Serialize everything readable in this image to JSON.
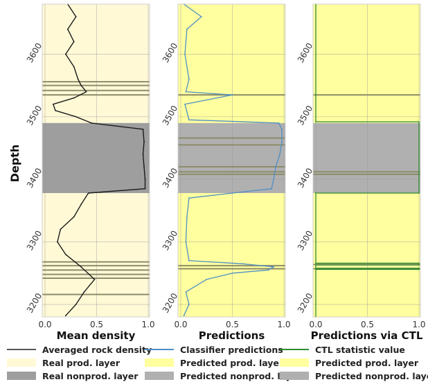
{
  "chart_data": [
    {
      "type": "line",
      "xlabel": "Mean density",
      "ylabel": "Depth",
      "xlim": [
        0,
        1
      ],
      "ylim": [
        3180,
        3680
      ],
      "xticks": [
        "0.0",
        "0.5",
        "1.0"
      ],
      "yticks": [
        "3200",
        "3300",
        "3400",
        "3500",
        "3600"
      ],
      "series": [
        {
          "name": "Averaged rock density",
          "color": "#1a1a1a",
          "depth": [
            3182,
            3200,
            3220,
            3240,
            3260,
            3280,
            3300,
            3320,
            3340,
            3360,
            3378,
            3385,
            3400,
            3420,
            3440,
            3460,
            3480,
            3490,
            3500,
            3510,
            3520,
            3530,
            3540,
            3550,
            3560,
            3580,
            3600,
            3620,
            3640,
            3660,
            3680
          ],
          "values": [
            0.2,
            0.3,
            0.38,
            0.48,
            0.35,
            0.2,
            0.12,
            0.15,
            0.28,
            0.35,
            0.42,
            0.97,
            0.97,
            0.96,
            0.95,
            0.96,
            0.95,
            0.45,
            0.3,
            0.1,
            0.08,
            0.28,
            0.4,
            0.35,
            0.32,
            0.28,
            0.2,
            0.28,
            0.22,
            0.3,
            0.22
          ]
        }
      ],
      "bands": [
        {
          "name": "Real prod. layer",
          "color": "#fff9d6",
          "from": 3180,
          "to": 3680
        },
        {
          "name": "Real nonprod. layer",
          "color": "#9e9e9e",
          "from": 3378,
          "to": 3490
        }
      ],
      "lines_at_depth": [
        3216,
        3242,
        3248,
        3255,
        3262,
        3268,
        3535,
        3542,
        3550,
        3556
      ]
    },
    {
      "type": "line",
      "xlabel": "Predictions",
      "xlim": [
        0,
        1
      ],
      "ylim": [
        3180,
        3680
      ],
      "xticks": [
        "0.0",
        "0.5",
        "1.0"
      ],
      "yticks": [
        "3200",
        "3300",
        "3400",
        "3500",
        "3600"
      ],
      "series": [
        {
          "name": "Classifier predictions",
          "color": "#4f8fc6",
          "depth": [
            3182,
            3200,
            3220,
            3240,
            3250,
            3255,
            3260,
            3265,
            3270,
            3300,
            3340,
            3370,
            3378,
            3385,
            3400,
            3420,
            3440,
            3460,
            3480,
            3490,
            3495,
            3520,
            3535,
            3540,
            3560,
            3600,
            3640,
            3660,
            3680
          ],
          "values": [
            0.03,
            0.08,
            0.05,
            0.25,
            0.5,
            0.85,
            0.9,
            0.6,
            0.08,
            0.05,
            0.06,
            0.08,
            0.5,
            0.88,
            0.9,
            0.92,
            0.96,
            0.98,
            0.98,
            0.95,
            0.08,
            0.04,
            0.5,
            0.05,
            0.08,
            0.04,
            0.06,
            0.2,
            0.03
          ]
        }
      ],
      "bands": [
        {
          "name": "Predicted prod. layer",
          "color": "#ffff9f",
          "from": 3180,
          "to": 3680
        },
        {
          "name": "Predicted nonprod. layer",
          "color": "#b0b0b0",
          "from": 3378,
          "to": 3490
        }
      ],
      "lines_at_depth": [
        3257,
        3262,
        3408,
        3412,
        3420,
        3455,
        3466,
        3535
      ]
    },
    {
      "type": "line",
      "xlabel": "Predictions via CTL",
      "xlim": [
        0,
        1
      ],
      "ylim": [
        3180,
        3680
      ],
      "xticks": [
        "0.0",
        "0.5",
        "1.0"
      ],
      "yticks": [
        "3200",
        "3300",
        "3400",
        "3500",
        "3600"
      ],
      "series": [
        {
          "name": "CTL statistic value",
          "color": "#2e8b2e",
          "depth": [
            3180,
            3256,
            3256,
            3258,
            3258,
            3263,
            3263,
            3266,
            3266,
            3378,
            3378,
            3492,
            3492,
            3680
          ],
          "values": [
            0,
            0,
            1,
            1,
            0,
            0,
            1,
            1,
            0,
            0,
            1,
            1,
            0,
            0
          ]
        }
      ],
      "bands": [
        {
          "name": "Predicted prod. layer",
          "color": "#ffff9f",
          "from": 3180,
          "to": 3680
        },
        {
          "name": "Predicted nonprod. layer",
          "color": "#b0b0b0",
          "from": 3378,
          "to": 3490
        }
      ],
      "lines_at_depth": [
        3257,
        3264,
        3408,
        3412,
        3535
      ]
    }
  ],
  "legend": [
    {
      "label": "Averaged rock density",
      "kind": "line",
      "color": "#555555"
    },
    {
      "label": "Classifier predictions",
      "kind": "line",
      "color": "#4f8fc6"
    },
    {
      "label": "CTL statistic value",
      "kind": "line",
      "color": "#2e8b2e"
    },
    {
      "label": "Real prod. layer",
      "kind": "patch",
      "color": "#fff9d6"
    },
    {
      "label": "Predicted prod. layer",
      "kind": "patch",
      "color": "#ffff9f"
    },
    {
      "label": "Predicted prod. layer",
      "kind": "patch",
      "color": "#ffff9f"
    },
    {
      "label": "Real nonprod. layer",
      "kind": "patch",
      "color": "#9e9e9e"
    },
    {
      "label": "Predicted nonprod. layer",
      "kind": "patch",
      "color": "#b0b0b0"
    },
    {
      "label": "Predicted nonprod. layer",
      "kind": "patch",
      "color": "#b0b0b0"
    }
  ]
}
